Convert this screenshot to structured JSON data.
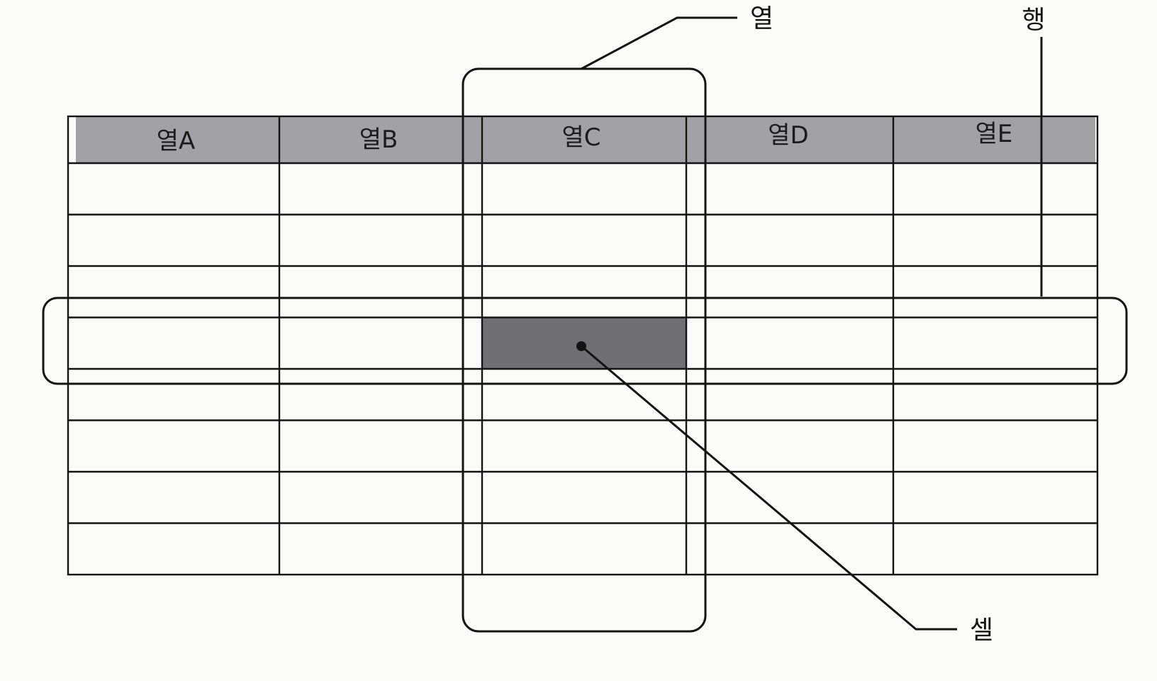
{
  "diagram": {
    "column_headers": [
      "열A",
      "열B",
      "열C",
      "열D",
      "열E"
    ],
    "body_row_count": 8,
    "highlighted_cell": {
      "row": 3,
      "column": 2
    },
    "highlighted_column": 2,
    "highlighted_row": 3,
    "callouts": {
      "column": "열",
      "row": "행",
      "cell": "셀"
    },
    "colors": {
      "header_fill": "#a2a2a6",
      "cell_fill": "#6f6f74",
      "line": "#141414",
      "background": "#fbfbfa"
    }
  }
}
